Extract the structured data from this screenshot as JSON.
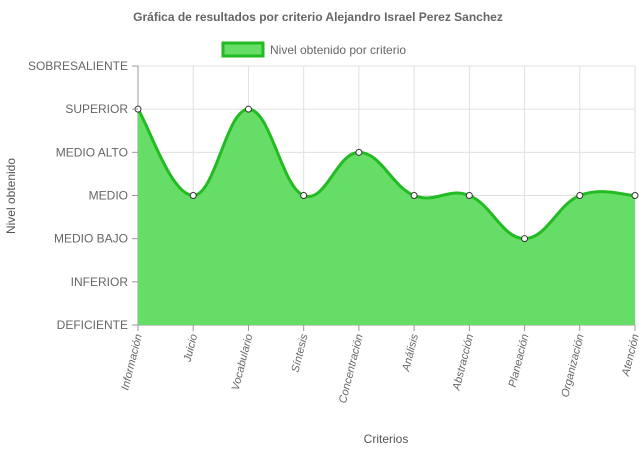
{
  "chart_data": {
    "type": "area",
    "title": "Gráfica de resultados por criterio Alejandro Israel Perez Sanchez",
    "xlabel": "Criterios",
    "ylabel": "Nivel obtenido",
    "legend_position": "top",
    "grid": true,
    "y_levels": [
      "DEFICIENTE",
      "INFERIOR",
      "MEDIO BAJO",
      "MEDIO",
      "MEDIO ALTO",
      "SUPERIOR",
      "SOBRESALIENTE"
    ],
    "ylim": [
      0,
      6
    ],
    "categories": [
      "Información",
      "Juicio",
      "Vocabulario",
      "Síntesis",
      "Concentración",
      "Análisis",
      "Abstracción",
      "Planeación",
      "Organización",
      "Atención"
    ],
    "series": [
      {
        "name": "Nivel obtenido por criterio",
        "values": [
          5,
          3,
          5,
          3,
          4,
          3,
          3,
          2,
          3,
          3
        ],
        "value_labels": [
          "SUPERIOR",
          "MEDIO",
          "SUPERIOR",
          "MEDIO",
          "MEDIO ALTO",
          "MEDIO",
          "MEDIO",
          "MEDIO BAJO",
          "MEDIO",
          "MEDIO"
        ]
      }
    ],
    "colors": {
      "fill": "#66dd66",
      "line": "#22bb22",
      "point_fill": "#ffffff",
      "point_stroke": "#333333",
      "grid": "#e0e0e0"
    }
  }
}
